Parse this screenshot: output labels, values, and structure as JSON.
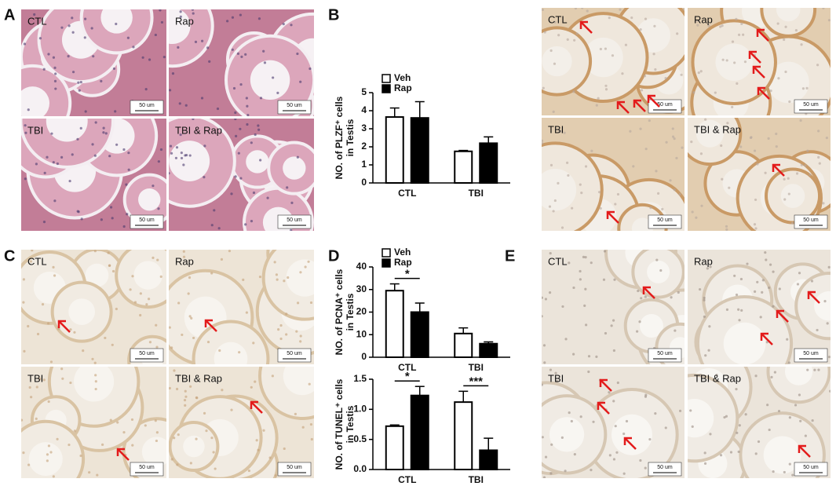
{
  "panel_letters": [
    "A",
    "B",
    "C",
    "D",
    "E"
  ],
  "image_panels": {
    "A": [
      "CTL",
      "Rap",
      "TBI",
      "TBI & Rap"
    ],
    "B": [
      "CTL",
      "Rap",
      "TBI",
      "TBI & Rap"
    ],
    "C": [
      "CTL",
      "Rap",
      "TBI",
      "TBI & Rap"
    ],
    "E": [
      "CTL",
      "Rap",
      "TBI",
      "TBI & Rap"
    ]
  },
  "scale_bar": "50 um",
  "chart_data": [
    {
      "type": "bar",
      "ylabel": [
        "NO. of PLZF⁺ cells",
        "in Testis"
      ],
      "categories": [
        "CTL",
        "TBI"
      ],
      "series": [
        {
          "name": "Veh",
          "color": "#ffffff",
          "values": [
            3.65,
            1.75
          ],
          "errors": [
            0.5,
            0.05
          ]
        },
        {
          "name": "Rap",
          "color": "#000000",
          "values": [
            3.6,
            2.2
          ],
          "errors": [
            0.9,
            0.35
          ]
        }
      ],
      "ylim": [
        0,
        5
      ],
      "yticks": [
        0,
        1,
        2,
        3,
        4,
        5
      ],
      "legend": true
    },
    {
      "type": "bar",
      "ylabel": [
        "NO. of PCNA⁺ cells",
        "in Testis"
      ],
      "categories": [
        "CTL",
        "TBI"
      ],
      "series": [
        {
          "name": "Veh",
          "color": "#ffffff",
          "values": [
            29.5,
            10.5
          ],
          "errors": [
            3,
            2.5
          ]
        },
        {
          "name": "Rap",
          "color": "#000000",
          "values": [
            20,
            6
          ],
          "errors": [
            4,
            0.8
          ]
        }
      ],
      "ylim": [
        0,
        40
      ],
      "yticks": [
        0,
        10,
        20,
        30,
        40
      ],
      "legend": true,
      "annotations": [
        "*"
      ]
    },
    {
      "type": "bar",
      "ylabel": [
        "NO. of TUNEL⁺ cells",
        "in Testis"
      ],
      "categories": [
        "CTL",
        "TBI"
      ],
      "series": [
        {
          "color": "#ffffff",
          "values": [
            0.72,
            1.12
          ],
          "errors": [
            0.02,
            0.18
          ]
        },
        {
          "color": "#000000",
          "values": [
            1.23,
            0.32
          ],
          "errors": [
            0.15,
            0.2
          ]
        }
      ],
      "ylim": [
        0,
        1.5
      ],
      "yticks": [
        {
          "value": 0,
          "label": "0.0"
        },
        0.5,
        {
          "value": 1,
          "label": "1.0"
        },
        1.5
      ],
      "legend": false,
      "annotations": [
        "*",
        "***"
      ]
    }
  ]
}
